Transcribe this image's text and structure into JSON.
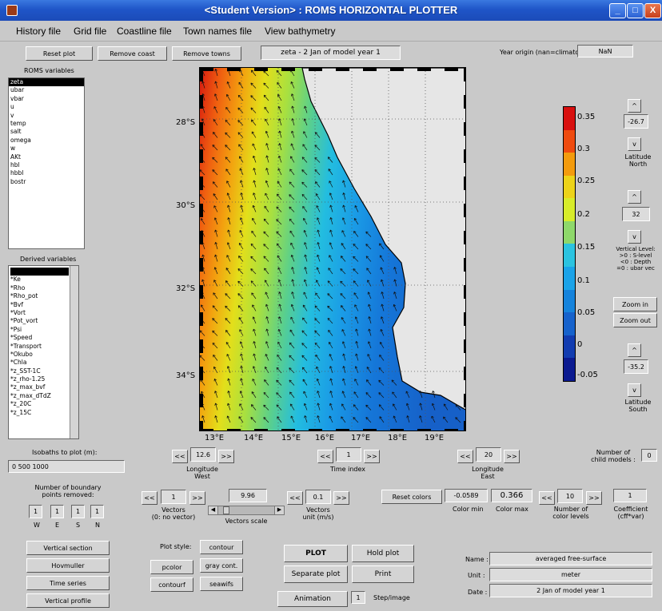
{
  "window": {
    "title": "<Student Version> : ROMS HORIZONTAL PLOTTER",
    "min": "_",
    "max": "□",
    "close": "X"
  },
  "menu": [
    "History file",
    "Grid file",
    "Coastline file",
    "Town names file",
    "View bathymetry"
  ],
  "top": {
    "reset_plot": "Reset plot",
    "remove_coast": "Remove coast",
    "remove_towns": "Remove towns",
    "plot_title": "zeta - 2 Jan of model year 1",
    "year_origin_label": "Year origin (nan=climato):",
    "year_origin_value": "NaN"
  },
  "roms_vars": {
    "label": "ROMS variables",
    "items": [
      "zeta",
      "ubar",
      "vbar",
      "u",
      "v",
      "temp",
      "salt",
      "omega",
      "w",
      "AKt",
      "hbl",
      "hbbl",
      "bostr"
    ]
  },
  "derived": {
    "label": "Derived variables",
    "items": [
      "",
      "*Ke",
      "*Rho",
      "*Rho_pot",
      "*Bvf",
      "*Vort",
      "*Pot_vort",
      "*Psi",
      "*Speed",
      "*Transport",
      "*Okubo",
      "*Chla",
      "*z_SST-1C",
      "*z_rho-1.25",
      "*z_max_bvf",
      "*z_max_dTdZ",
      "*z_20C",
      "*z_15C"
    ]
  },
  "isobaths": {
    "label": "Isobaths to plot (m):",
    "value": "0 500 1000"
  },
  "map": {
    "lat_ticks": [
      "28°S",
      "30°S",
      "32°S",
      "34°S"
    ],
    "lon_ticks": [
      "13°E",
      "14°E",
      "15°E",
      "16°E",
      "17°E",
      "18°E",
      "19°E"
    ]
  },
  "colorbar": {
    "labels": [
      "0.35",
      "0.3",
      "0.25",
      "0.2",
      "0.15",
      "0.1",
      "0.05",
      "0",
      "-0.05"
    ],
    "colors": [
      "#d8100f",
      "#ef4b0f",
      "#f39b0d",
      "#ecd319",
      "#d7ec2a",
      "#8ed86a",
      "#2bc3e0",
      "#1ba3e8",
      "#1583dc",
      "#1662cc",
      "#123cb0",
      "#0b1a90"
    ]
  },
  "lat_north": {
    "up": "^",
    "value": "-26.7",
    "down": "v",
    "label1": "Latitude",
    "label2": "North"
  },
  "vlevel": {
    "up": "^",
    "value": "32",
    "down": "v",
    "label1": "Vertical Level:",
    "label2": ">0 : S-level",
    "label3": "<0 : Depth",
    "label4": "=0 : ubar vec"
  },
  "zoom": {
    "in": "Zoom in",
    "out": "Zoom out"
  },
  "lat_south": {
    "up": "^",
    "value": "-35.2",
    "down": "v",
    "label1": "Latitude",
    "label2": "South"
  },
  "lon_west": {
    "prev": "<<",
    "value": "12.6",
    "next": ">>",
    "label1": "Longitude",
    "label2": "West"
  },
  "time_index": {
    "prev": "<<",
    "value": "1",
    "next": ">>",
    "label": "Time index"
  },
  "lon_east": {
    "prev": "<<",
    "value": "20",
    "next": ">>",
    "label1": "Longitude",
    "label2": "East"
  },
  "child": {
    "label1": "Number of",
    "label2": "child models :",
    "value": "0"
  },
  "boundary": {
    "label1": "Number of boundary",
    "label2": "points removed:",
    "values": [
      "1",
      "1",
      "1",
      "1"
    ],
    "dirs": [
      "W",
      "E",
      "S",
      "N"
    ]
  },
  "vectors": {
    "prev": "<<",
    "value": "1",
    "next": ">>",
    "label1": "Vectors",
    "label2": "(0: no vector)",
    "scale_value": "9.96",
    "scale_label": "Vectors scale",
    "unit_prev": "<<",
    "unit_value": "0.1",
    "unit_next": ">>",
    "unit_label1": "Vectors",
    "unit_label2": "unit (m/s)"
  },
  "colors": {
    "reset": "Reset colors",
    "cmin": "-0.0589",
    "cmax": "0.366",
    "cmin_label": "Color min",
    "cmax_label": "Color max",
    "lev_prev": "<<",
    "levels": "10",
    "lev_next": ">>",
    "lev_label1": "Number of",
    "lev_label2": "color levels",
    "coef": "1",
    "coef_label1": "Coefficient",
    "coef_label2": "(cff*var)"
  },
  "left_buttons": [
    "Vertical section",
    "Hovmuller",
    "Time series",
    "Vertical profile"
  ],
  "plot_style": {
    "label": "Plot style:",
    "contour": "contour",
    "pcolor": "pcolor",
    "graycont": "gray cont.",
    "contourf": "contourf",
    "seawifs": "seawifs"
  },
  "actions": {
    "plot": "PLOT",
    "hold": "Hold plot",
    "separate": "Separate plot",
    "print": "Print",
    "animation": "Animation",
    "step_value": "1",
    "step_label": "Step/image"
  },
  "info": {
    "name_label": "Name :",
    "name": "averaged free-surface",
    "unit_label": "Unit :",
    "unit": "meter",
    "date_label": "Date :",
    "date": "2 Jan of model year 1"
  }
}
